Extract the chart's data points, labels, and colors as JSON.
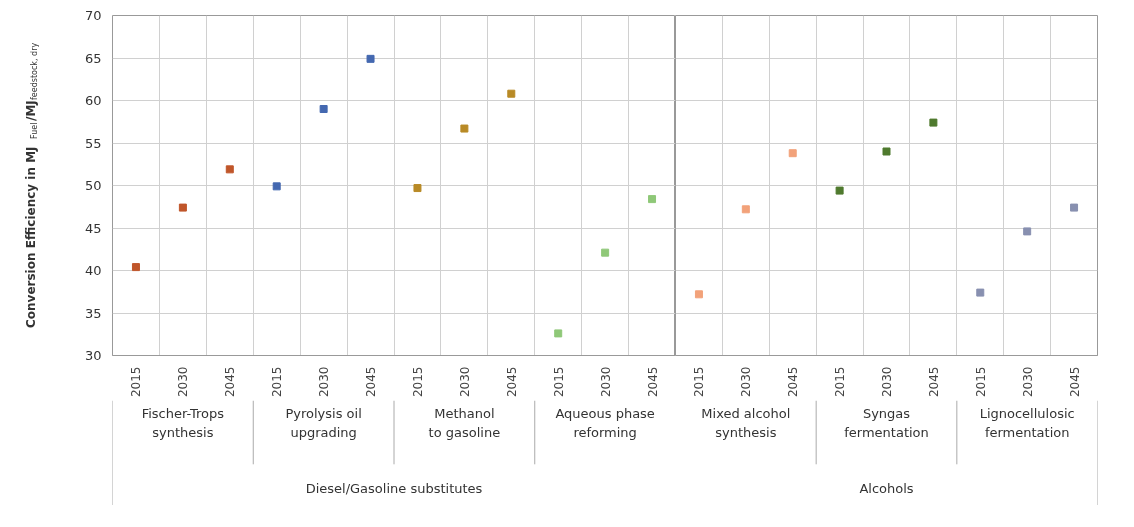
{
  "chart_data": [
    {
      "type": "scatter",
      "xlabel": "Diesel/Gasoline substitutes",
      "ylabel": "Conversion Efficiency in MJ$_{Fuel}$/MJ$_{feedstock, dry}$",
      "categories": [
        "2015",
        "2030",
        "2045",
        "2015",
        "2030",
        "2045",
        "2015",
        "2030",
        "2045",
        "2015",
        "2030",
        "2045"
      ],
      "values": [
        40.4,
        47.4,
        51.9,
        49.9,
        59.0,
        64.9,
        49.7,
        56.7,
        60.8,
        32.6,
        42.1,
        48.4
      ],
      "colors": [
        "#c0562a",
        "#c0562a",
        "#c0562a",
        "#4468b0",
        "#4468b0",
        "#4468b0",
        "#b88a26",
        "#b88a26",
        "#b88a26",
        "#8fc878",
        "#8fc878",
        "#8fc878"
      ],
      "annotations": [
        "Fischer-Trops\nsynthesis",
        "Pyrolysis oil\nupgrading",
        "Methanol\nto gasoline",
        "Aqueous phase\nreforming"
      ],
      "ylim": [
        30,
        70
      ],
      "yticks": [
        30,
        35,
        40,
        45,
        50,
        55,
        60,
        65,
        70
      ],
      "grid": true
    },
    {
      "type": "scatter",
      "xlabel": "Alcohols",
      "categories": [
        "2015",
        "2030",
        "2045",
        "2015",
        "2030",
        "2045",
        "2015",
        "2030",
        "2045"
      ],
      "values": [
        37.2,
        47.2,
        53.8,
        49.4,
        54.0,
        57.4,
        37.4,
        44.6,
        47.4
      ],
      "colors": [
        "#f2a27a",
        "#f2a27a",
        "#f2a27a",
        "#4f7a2e",
        "#4f7a2e",
        "#4f7a2e",
        "#8890b0",
        "#8890b0",
        "#8890b0"
      ],
      "annotations": [
        "Mixed alcohol\nsynthesis",
        "Syngas\nfermentation",
        "Lignocellulosic\nfermentation"
      ],
      "ylim": [
        30,
        70
      ],
      "yticks": [
        30,
        35,
        40,
        45,
        50,
        55,
        60,
        65,
        70
      ],
      "grid": true,
      "tick_labels": "x"
    }
  ]
}
